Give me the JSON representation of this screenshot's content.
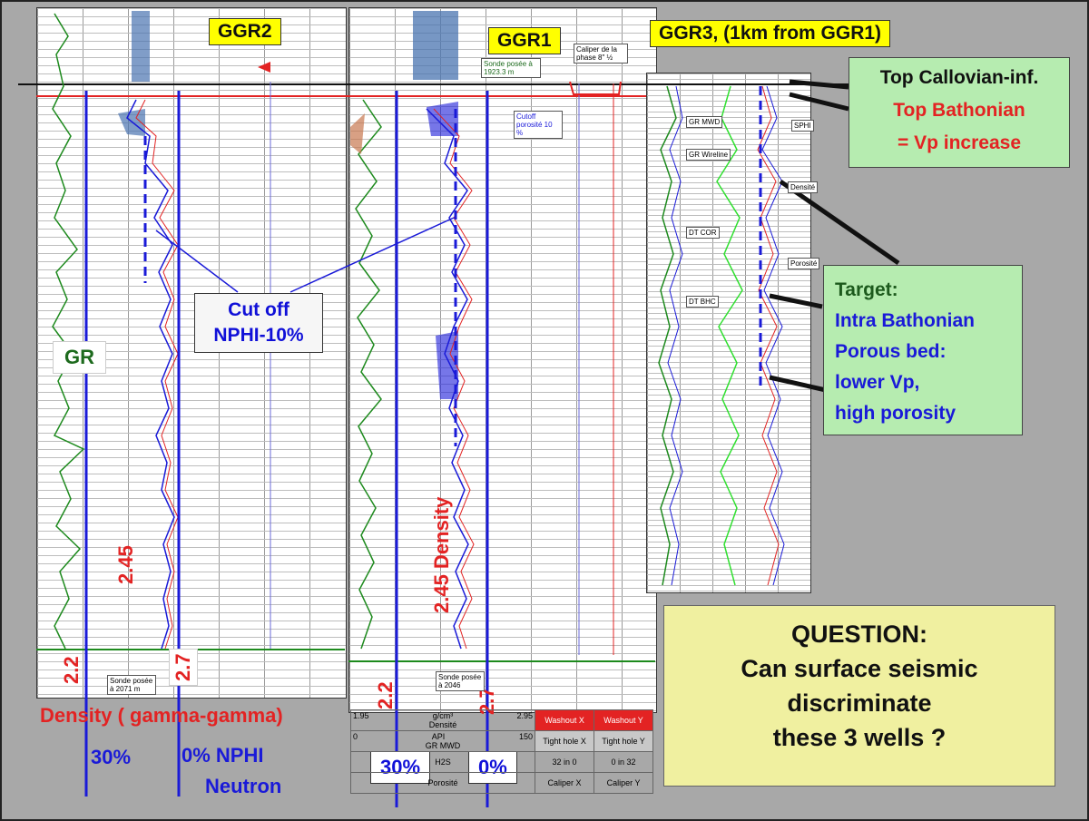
{
  "wells": {
    "ggr2": "GGR2",
    "ggr1": "GGR1",
    "ggr3": "GGR3, (1km from GGR1)"
  },
  "annotations": {
    "top_callovian": "Top Callovian-inf.",
    "top_bathonian": "Top Bathonian",
    "vp_increase": "= Vp increase",
    "target_title": "Target:",
    "target_l1": "Intra Bathonian",
    "target_l2": "Porous bed:",
    "target_l3": "lower Vp,",
    "target_l4": "high porosity",
    "cutoff_l1": "Cut off",
    "cutoff_l2": "NPHI-10%",
    "gr": "GR",
    "density_label": "Density ( gamma-gamma)",
    "pct30_left": "30%",
    "nphi_label": "0% NPHI",
    "neutron": "Neutron",
    "d245_left": "2.45",
    "d22_left": "2.2",
    "d27_left": "2.7",
    "density_mid": "2.45 Density",
    "d22_mid": "2.2",
    "d27_mid": "2.7",
    "pct30_mid": "30%",
    "pct0_mid": "0%"
  },
  "question": {
    "l1": "QUESTION:",
    "l2": "Can surface seismic",
    "l3": "discriminate",
    "l4": "these 3 wells ?"
  },
  "log_labels": {
    "sonde_left": "Sonde posée à 2071 m",
    "sonde_mid_top": "Sonde posée à 1923.3 m",
    "sonde_mid_bottom": "Sonde posée à 2046",
    "caliper": "Caliper de la phase 8\" ½",
    "cutoff_porosite": "Cutoff porosité 10 %",
    "gr_mwd": "GR MWD",
    "gr_wireline": "GR Wireline",
    "dt_cor": "DT COR",
    "dt_bhc": "DT BHC",
    "sphi": "SPHI",
    "densite": "Densité",
    "porosite": "Porosité"
  },
  "header_table": {
    "r1": [
      "1.95",
      "g/cm³",
      "2.95"
    ],
    "r1_name": "Densité",
    "r2": [
      "0",
      "API",
      "150"
    ],
    "r2_name": "GR MWD",
    "r3_name": "H2S",
    "r4_name": "Porosité",
    "washout_x": "Washout X",
    "washout_y": "Washout Y",
    "tight_x": "Tight hole X",
    "tight_y": "Tight hole Y",
    "cal_x_range": "32  in   0",
    "cal_y_range": "0  in  32",
    "caliper_x": "Caliper X",
    "caliper_y": "Caliper Y"
  },
  "colors": {
    "gr_curve": "#1d8a1d",
    "density_curve": "#e32323",
    "neutron_curve": "#1a1ad8",
    "fill_porous": "#4a74b0",
    "yellow_box": "#ffff00",
    "green_box": "#b6ecb0",
    "question_box": "#f0f0a0",
    "background": "#a8a8a8"
  }
}
